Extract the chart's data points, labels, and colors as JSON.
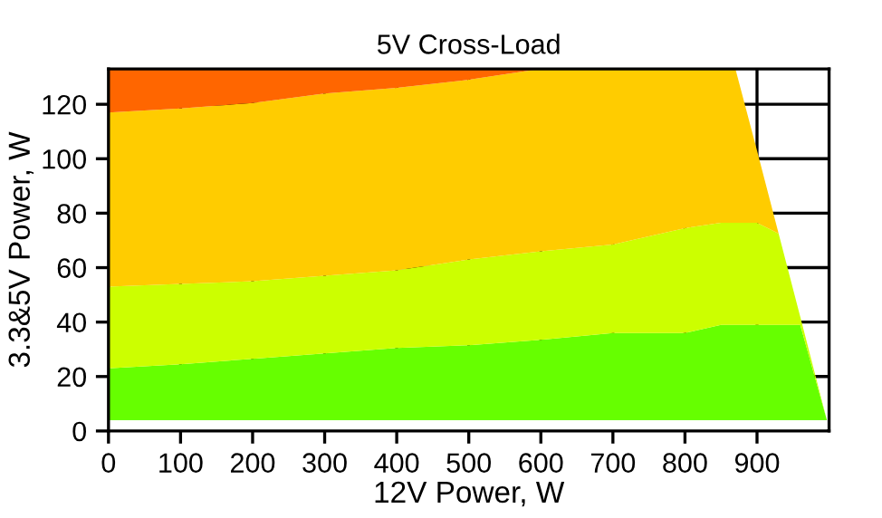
{
  "chart_data": {
    "type": "area",
    "stacked": true,
    "title": "5V Cross-Load",
    "xlabel": "12V Power, W",
    "ylabel": "3.3&5V Power, W",
    "x": [
      0,
      100,
      200,
      300,
      400,
      500,
      600,
      700,
      800,
      850,
      870,
      900,
      930,
      960,
      997
    ],
    "series": [
      {
        "color": "#ffffff",
        "values": [
          4,
          4,
          4,
          4,
          4,
          4,
          4,
          4,
          4,
          4,
          4,
          4,
          4,
          4,
          4
        ]
      },
      {
        "color": "#66ff00",
        "values": [
          19,
          20.5,
          22.5,
          24.5,
          26.5,
          27.5,
          29.5,
          32,
          32,
          35,
          35,
          35,
          35,
          35,
          0
        ]
      },
      {
        "color": "#ccff00",
        "values": [
          30,
          29.5,
          28.5,
          28.5,
          28.5,
          31.5,
          32.5,
          32.5,
          38.5,
          37.5,
          37.5,
          37.5,
          33.5,
          3,
          0
        ]
      },
      {
        "color": "#ffcc00",
        "values": [
          64,
          64.5,
          65.5,
          67,
          67,
          66,
          67,
          64.5,
          58.5,
          56.5,
          56.5,
          26.5,
          0,
          0,
          0
        ]
      },
      {
        "color": "#ff6600",
        "values": [
          16,
          14.5,
          12.5,
          9,
          7,
          4,
          0,
          null,
          null,
          null,
          null,
          null,
          null,
          null,
          null
        ]
      }
    ],
    "xlim": [
      0,
      1000
    ],
    "ylim": [
      0,
      133
    ],
    "xticks": [
      0,
      100,
      200,
      300,
      400,
      500,
      600,
      700,
      800,
      900
    ],
    "yticks": [
      0,
      20,
      40,
      60,
      80,
      100,
      120
    ],
    "grid": true
  }
}
